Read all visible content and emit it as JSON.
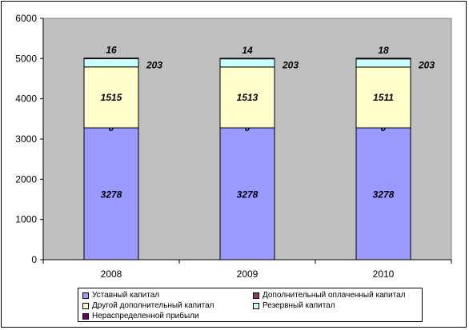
{
  "chart_data": {
    "type": "bar",
    "stacked": true,
    "title": "",
    "xlabel": "",
    "ylabel": "",
    "categories": [
      "2008",
      "2009",
      "2010"
    ],
    "ylim": [
      0,
      6000
    ],
    "yticks": [
      "0",
      "1000",
      "2000",
      "3000",
      "4000",
      "5000",
      "6000"
    ],
    "grid": false,
    "plot_background": "#c0c0c0",
    "legend_position": "bottom",
    "series": [
      {
        "name": "Уставный капитал",
        "color": "#9999ff",
        "values": [
          3278,
          3278,
          3278
        ],
        "labels": [
          "3278",
          "3278",
          "3278"
        ]
      },
      {
        "name": "Дополнительный оплаченный капитал",
        "color": "#993366",
        "values": [
          0,
          0,
          0
        ],
        "labels": [
          "0",
          "0",
          "0"
        ]
      },
      {
        "name": "Другой дополнительный капитал",
        "color": "#ffffcc",
        "values": [
          1515,
          1513,
          1511
        ],
        "labels": [
          "1515",
          "1513",
          "1511"
        ]
      },
      {
        "name": "Резервный капитал",
        "color": "#ccffff",
        "values": [
          203,
          203,
          203
        ],
        "labels": [
          "203",
          "203",
          "203"
        ]
      },
      {
        "name": "Нераспределенной прибыли",
        "color": "#660066",
        "values": [
          16,
          14,
          18
        ],
        "labels": [
          "16",
          "14",
          "18"
        ]
      }
    ]
  }
}
